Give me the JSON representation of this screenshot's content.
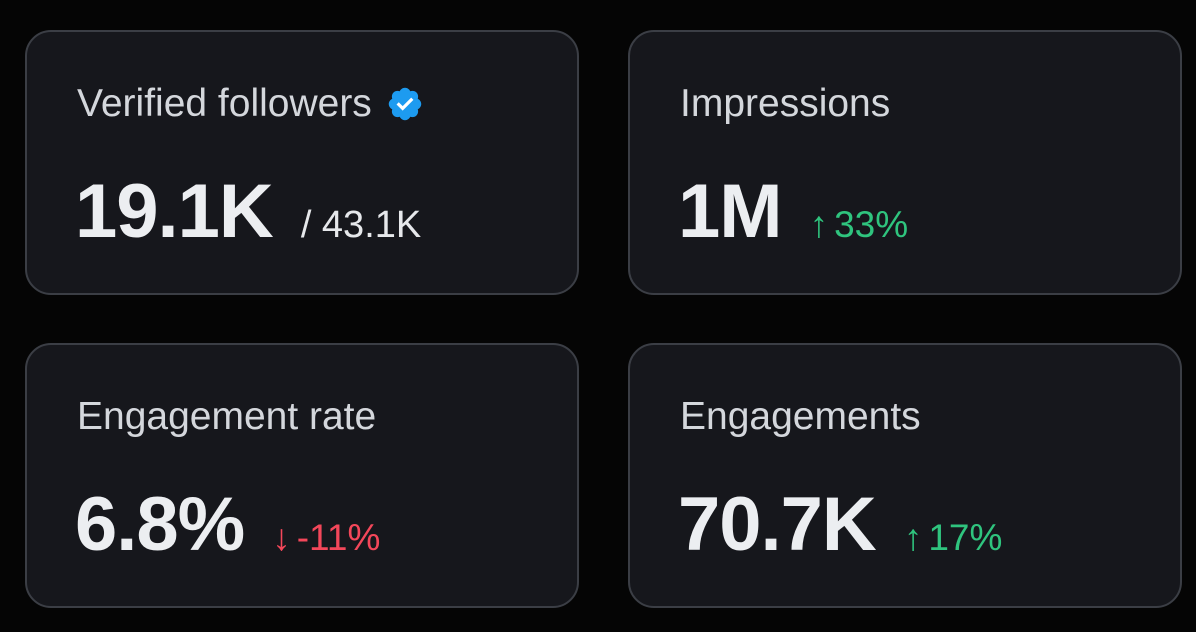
{
  "cards": [
    {
      "title": "Verified followers",
      "value": "19.1K",
      "secondary": "/ 43.1K",
      "badge_icon": "verified-badge-icon",
      "badge_color": "#1d9bf0"
    },
    {
      "title": "Impressions",
      "value": "1M",
      "delta": {
        "arrow": "↑",
        "text": "33%",
        "direction": "up",
        "color": "#2fc47e"
      }
    },
    {
      "title": "Engagement rate",
      "value": "6.8%",
      "delta": {
        "arrow": "↓",
        "text": "-11%",
        "direction": "down",
        "color": "#f4475a"
      }
    },
    {
      "title": "Engagements",
      "value": "70.7K",
      "delta": {
        "arrow": "↑",
        "text": "17%",
        "direction": "up",
        "color": "#2fc47e"
      }
    }
  ]
}
